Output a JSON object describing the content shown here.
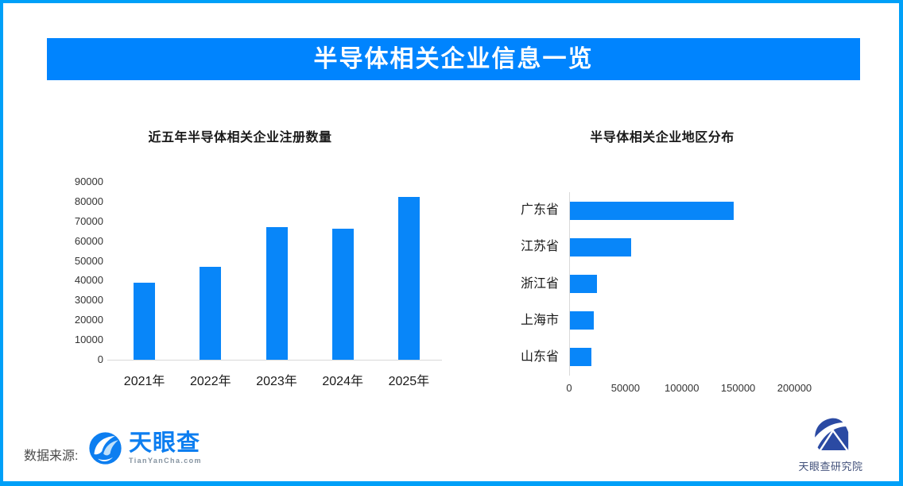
{
  "header": {
    "title": "半导体相关企业信息一览"
  },
  "footer": {
    "source_label": "数据来源:",
    "tyc_logo": {
      "name": "天眼查",
      "url_text": "TianYanCha.com"
    },
    "institute_logo": {
      "name": "天眼查研究院"
    }
  },
  "colors": {
    "border": "#00A0F8",
    "banner": "#0084FE",
    "bar": "#0886F9",
    "axis_line": "#D9D9D9",
    "tyc_blue": "#0D7EF0",
    "institute_blue": "#2B4AA3"
  },
  "chart_data": [
    {
      "type": "bar",
      "orientation": "vertical",
      "title": "近五年半导体相关企业注册数量",
      "categories": [
        "2021年",
        "2022年",
        "2023年",
        "2024年",
        "2025年"
      ],
      "values": [
        39000,
        47000,
        67000,
        66500,
        82500
      ],
      "ylim": [
        0,
        90000
      ],
      "y_tick_step": 10000,
      "y_tick_labels": [
        "0",
        "10000",
        "20000",
        "30000",
        "40000",
        "50000",
        "60000",
        "70000",
        "80000",
        "90000"
      ],
      "grid": false,
      "legend": "none",
      "bar_color": "#0886F9"
    },
    {
      "type": "bar",
      "orientation": "horizontal",
      "title": "半导体相关企业地区分布",
      "categories": [
        "广东省",
        "江苏省",
        "浙江省",
        "上海市",
        "山东省"
      ],
      "values": [
        145000,
        54000,
        24000,
        21500,
        19000
      ],
      "xlim": [
        0,
        230000
      ],
      "x_tick_values": [
        0,
        50000,
        100000,
        150000,
        200000
      ],
      "x_tick_labels": [
        "0",
        "50000",
        "100000",
        "150000",
        "200000"
      ],
      "grid": false,
      "legend": "none",
      "bar_color": "#0886F9"
    }
  ]
}
